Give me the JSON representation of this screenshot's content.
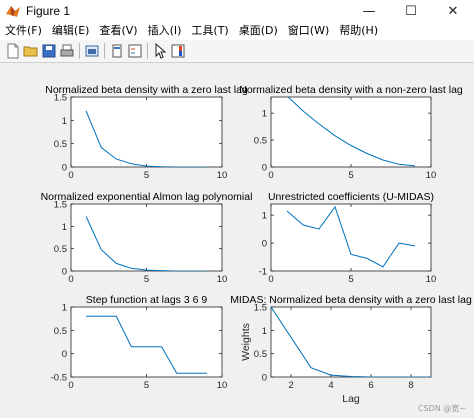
{
  "window": {
    "title": "Figure 1",
    "controls": {
      "minimize": "—",
      "maximize": "☐",
      "close": "✕"
    }
  },
  "menu": [
    "文件(F)",
    "编辑(E)",
    "查看(V)",
    "插入(I)",
    "工具(T)",
    "桌面(D)",
    "窗口(W)",
    "帮助(H)"
  ],
  "toolbar": [
    "new-file",
    "open-folder",
    "save",
    "print",
    "link-figure",
    "dock",
    "legend",
    "pointer",
    "colorbar"
  ],
  "watermark": "CSDN @宽~",
  "colors": {
    "line": "#0072bd",
    "axes_bg": "#ffffff",
    "figure_bg": "#f0f0f0"
  },
  "chart_data": [
    {
      "type": "line",
      "title": "Normalized beta density with a zero last lag",
      "xlim": [
        0,
        10
      ],
      "ylim": [
        0,
        1.5
      ],
      "xticks": [
        0,
        5,
        10
      ],
      "yticks": [
        0,
        0.5,
        1,
        1.5
      ],
      "xtick_labels": [
        "0",
        "5",
        "10"
      ],
      "ytick_labels": [
        "0",
        "0.5",
        "1",
        "1.5"
      ],
      "series": [
        {
          "x": [
            1,
            2,
            3,
            4,
            5,
            6,
            7,
            8,
            9
          ],
          "y": [
            1.2,
            0.42,
            0.17,
            0.07,
            0.02,
            0.005,
            0.0,
            0.0,
            0.0
          ]
        }
      ]
    },
    {
      "type": "line",
      "title": "Normalized beta density with a non-zero last lag",
      "xlim": [
        0,
        10
      ],
      "ylim": [
        0,
        1.3
      ],
      "xticks": [
        0,
        5,
        10
      ],
      "yticks": [
        0,
        0.5,
        1
      ],
      "xtick_labels": [
        "0",
        "5",
        "10"
      ],
      "ytick_labels": [
        "0",
        "0.5",
        "1"
      ],
      "series": [
        {
          "x": [
            1,
            2,
            3,
            4,
            5,
            6,
            7,
            8,
            9
          ],
          "y": [
            1.32,
            1.04,
            0.8,
            0.58,
            0.4,
            0.25,
            0.13,
            0.05,
            0.02
          ]
        }
      ]
    },
    {
      "type": "line",
      "title": "Normalized exponential Almon lag polynomial",
      "xlim": [
        0,
        10
      ],
      "ylim": [
        0,
        1.5
      ],
      "xticks": [
        0,
        5,
        10
      ],
      "yticks": [
        0,
        0.5,
        1,
        1.5
      ],
      "xtick_labels": [
        "0",
        "5",
        "10"
      ],
      "ytick_labels": [
        "0",
        "0.5",
        "1",
        "1.5"
      ],
      "series": [
        {
          "x": [
            1,
            2,
            3,
            4,
            5,
            6,
            7,
            8,
            9
          ],
          "y": [
            1.22,
            0.48,
            0.17,
            0.06,
            0.02,
            0.01,
            0.0,
            0.0,
            0.0
          ]
        }
      ]
    },
    {
      "type": "line",
      "title": "Unrestricted coefficients (U-MIDAS)",
      "xlim": [
        0,
        10
      ],
      "ylim": [
        -1,
        1.4
      ],
      "xticks": [
        0,
        5,
        10
      ],
      "yticks": [
        -1,
        0,
        1
      ],
      "xtick_labels": [
        "0",
        "5",
        "10"
      ],
      "ytick_labels": [
        "-1",
        "0",
        "1"
      ],
      "series": [
        {
          "x": [
            1,
            2,
            3,
            4,
            5,
            6,
            7,
            8,
            9
          ],
          "y": [
            1.15,
            0.65,
            0.5,
            1.3,
            -0.4,
            -0.55,
            -0.85,
            0.0,
            -0.1
          ]
        }
      ]
    },
    {
      "type": "line",
      "title": "Step function at lags 3  6  9",
      "xlim": [
        0,
        10
      ],
      "ylim": [
        -0.5,
        1
      ],
      "xticks": [
        0,
        5,
        10
      ],
      "yticks": [
        -0.5,
        0,
        0.5,
        1
      ],
      "xtick_labels": [
        "0",
        "5",
        "10"
      ],
      "ytick_labels": [
        "-0.5",
        "0",
        "0.5",
        "1"
      ],
      "series": [
        {
          "x": [
            1,
            2,
            3,
            4,
            5,
            6,
            7,
            8,
            9
          ],
          "y": [
            0.8,
            0.8,
            0.8,
            0.15,
            0.15,
            0.15,
            -0.42,
            -0.42,
            -0.42
          ]
        }
      ]
    },
    {
      "type": "line",
      "title": "MIDAS: Normalized beta density with a zero last lag",
      "xlabel": "Lag",
      "ylabel": "Weights",
      "xlim": [
        1,
        9
      ],
      "ylim": [
        0,
        1.5
      ],
      "xticks": [
        2,
        4,
        6,
        8
      ],
      "yticks": [
        0,
        0.5,
        1,
        1.5
      ],
      "xtick_labels": [
        "2",
        "4",
        "6",
        "8"
      ],
      "ytick_labels": [
        "0",
        "0.5",
        "1",
        "1.5"
      ],
      "series": [
        {
          "x": [
            1,
            2,
            3,
            4,
            5,
            6,
            7,
            8,
            9
          ],
          "y": [
            1.5,
            0.85,
            0.2,
            0.04,
            0.01,
            0.0,
            0.0,
            0.0,
            0.0
          ]
        }
      ]
    }
  ]
}
